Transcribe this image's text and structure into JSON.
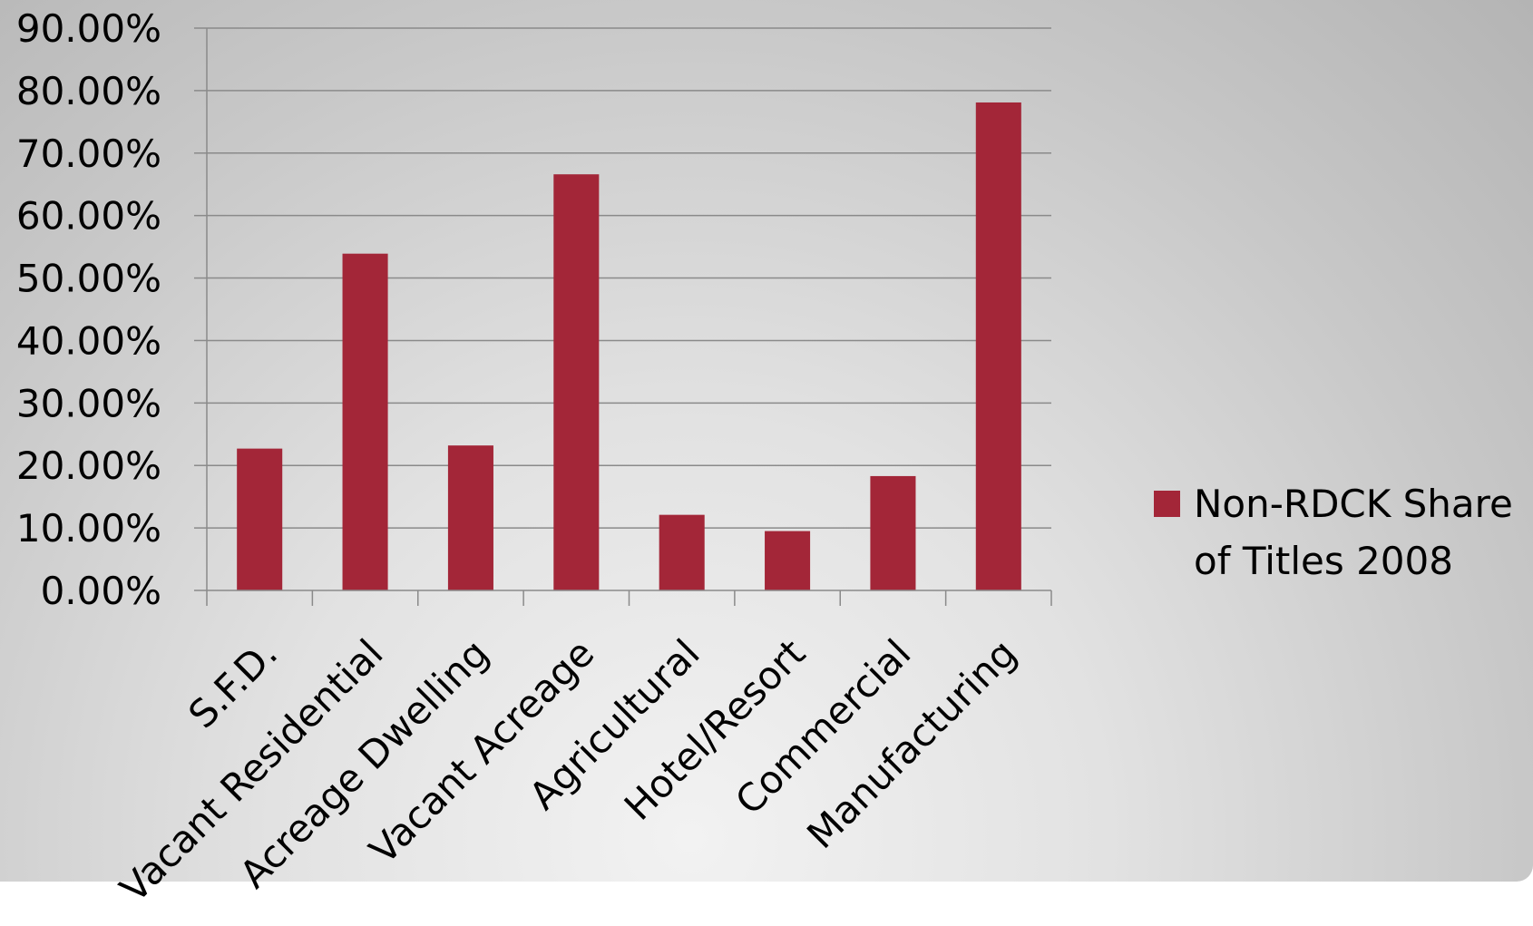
{
  "chart_data": {
    "type": "bar",
    "categories": [
      "S.F.D.",
      "Vacant Residential",
      "Acreage Dwelling",
      "Vacant Acreage",
      "Agricultural",
      "Hotel/Resort",
      "Commercial",
      "Manufacturing"
    ],
    "series": [
      {
        "name": "Non-RDCK Share of Titles 2008",
        "values": [
          22.7,
          53.9,
          23.2,
          66.6,
          12.1,
          9.5,
          18.3,
          78.1
        ],
        "color": "#a32638"
      }
    ],
    "y_ticks": [
      "0.00%",
      "10.00%",
      "20.00%",
      "30.00%",
      "40.00%",
      "50.00%",
      "60.00%",
      "70.00%",
      "80.00%",
      "90.00%"
    ],
    "ylim": [
      0,
      90
    ],
    "y_unit": "percent",
    "grid": true,
    "legend_position": "right",
    "legend": {
      "line1": "Non-RDCK Share",
      "line2": "of Titles 2008"
    }
  }
}
